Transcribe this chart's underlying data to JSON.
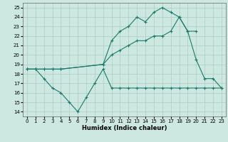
{
  "title": "",
  "xlabel": "Humidex (Indice chaleur)",
  "bg_color": "#cce8e0",
  "line_color": "#1a7a6a",
  "grid_color": "#aaccc4",
  "xlim": [
    -0.5,
    23.5
  ],
  "ylim": [
    13.5,
    25.5
  ],
  "xticks": [
    0,
    1,
    2,
    3,
    4,
    5,
    6,
    7,
    8,
    9,
    10,
    11,
    12,
    13,
    14,
    15,
    16,
    17,
    18,
    19,
    20,
    21,
    22,
    23
  ],
  "yticks": [
    14,
    15,
    16,
    17,
    18,
    19,
    20,
    21,
    22,
    23,
    24,
    25
  ],
  "line1_x": [
    0,
    1,
    2,
    3,
    4,
    5,
    6,
    7,
    8,
    9,
    10,
    11,
    12,
    13,
    14,
    15,
    16,
    17,
    18,
    19,
    20,
    21,
    22,
    23
  ],
  "line1_y": [
    18.5,
    18.5,
    17.5,
    16.5,
    16.0,
    15.0,
    14.0,
    15.5,
    17.0,
    18.5,
    16.5,
    16.5,
    16.5,
    16.5,
    16.5,
    16.5,
    16.5,
    16.5,
    16.5,
    16.5,
    16.5,
    16.5,
    16.5,
    16.5
  ],
  "line2_x": [
    0,
    1,
    2,
    3,
    4,
    9,
    10,
    11,
    12,
    13,
    14,
    15,
    16,
    17,
    18,
    19,
    20,
    21,
    22,
    23
  ],
  "line2_y": [
    18.5,
    18.5,
    18.5,
    18.5,
    18.5,
    19.0,
    21.5,
    22.5,
    23.0,
    24.0,
    23.5,
    24.5,
    25.0,
    24.5,
    24.0,
    22.5,
    19.5,
    17.5,
    17.5,
    16.5
  ],
  "line3_x": [
    0,
    1,
    2,
    3,
    4,
    9,
    10,
    11,
    12,
    13,
    14,
    15,
    16,
    17,
    18,
    19,
    20
  ],
  "line3_y": [
    18.5,
    18.5,
    18.5,
    18.5,
    18.5,
    19.0,
    20.0,
    20.5,
    21.0,
    21.5,
    21.5,
    22.0,
    22.0,
    22.5,
    24.0,
    22.5,
    22.5
  ]
}
